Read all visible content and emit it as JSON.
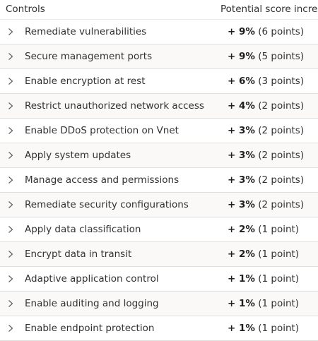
{
  "header": {
    "controls_label": "Controls",
    "score_label": "Potential score increa"
  },
  "rows": [
    {
      "name": "Remediate vulnerabilities",
      "percent": "+ 9%",
      "points": "(6 points)"
    },
    {
      "name": "Secure management ports",
      "percent": "+ 9%",
      "points": "(5 points)"
    },
    {
      "name": "Enable encryption at rest",
      "percent": "+ 6%",
      "points": "(3 points)"
    },
    {
      "name": "Restrict unauthorized network access",
      "percent": "+ 4%",
      "points": "(2 points)"
    },
    {
      "name": "Enable DDoS protection on Vnet",
      "percent": "+ 3%",
      "points": "(2 points)"
    },
    {
      "name": "Apply system updates",
      "percent": "+ 3%",
      "points": "(2 points)"
    },
    {
      "name": "Manage access and permissions",
      "percent": "+ 3%",
      "points": "(2 points)"
    },
    {
      "name": "Remediate security configurations",
      "percent": "+ 3%",
      "points": "(2 points)"
    },
    {
      "name": "Apply data classification",
      "percent": "+ 2%",
      "points": "(1 point)"
    },
    {
      "name": "Encrypt data in transit",
      "percent": "+ 2%",
      "points": "(1 point)"
    },
    {
      "name": "Adaptive application control",
      "percent": "+ 1%",
      "points": "(1 point)"
    },
    {
      "name": "Enable auditing and logging",
      "percent": "+ 1%",
      "points": "(1 point)"
    },
    {
      "name": "Enable endpoint protection",
      "percent": "+ 1%",
      "points": "(1 point)"
    }
  ]
}
